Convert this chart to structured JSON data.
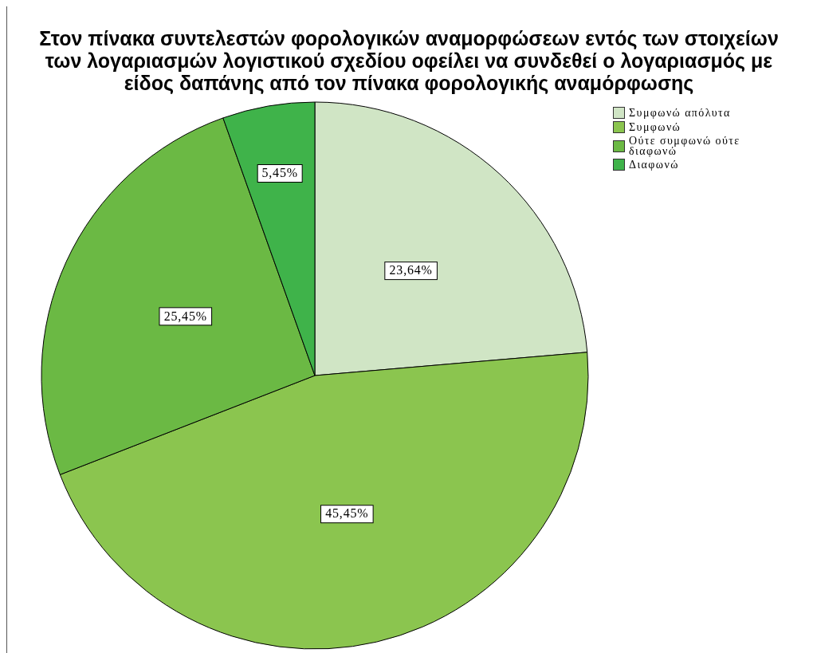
{
  "chart_data": {
    "type": "pie",
    "title": "Στον πίνακα συντελεστών φορολογικών αναμορφώσεων εντός των στοιχείων των λογαριασμών λογιστικού σχεδίου οφείλει να συνδεθεί ο λογαριασμός με είδος δαπάνης από τον πίνακα φορολογικής αναμόρφωσης",
    "categories": [
      "Συμφωνώ απόλυτα",
      "Συμφωνώ",
      "Ούτε συμφωνώ ούτε διαφωνώ",
      "Διαφωνώ"
    ],
    "values": [
      23.64,
      45.45,
      25.45,
      5.45
    ],
    "colors": [
      "#d0e5c5",
      "#8bc54f",
      "#6bb944",
      "#3fb34a"
    ],
    "value_labels": [
      "23,64%",
      "45,45%",
      "25,45%",
      "5,45%"
    ],
    "legend": "top right"
  }
}
